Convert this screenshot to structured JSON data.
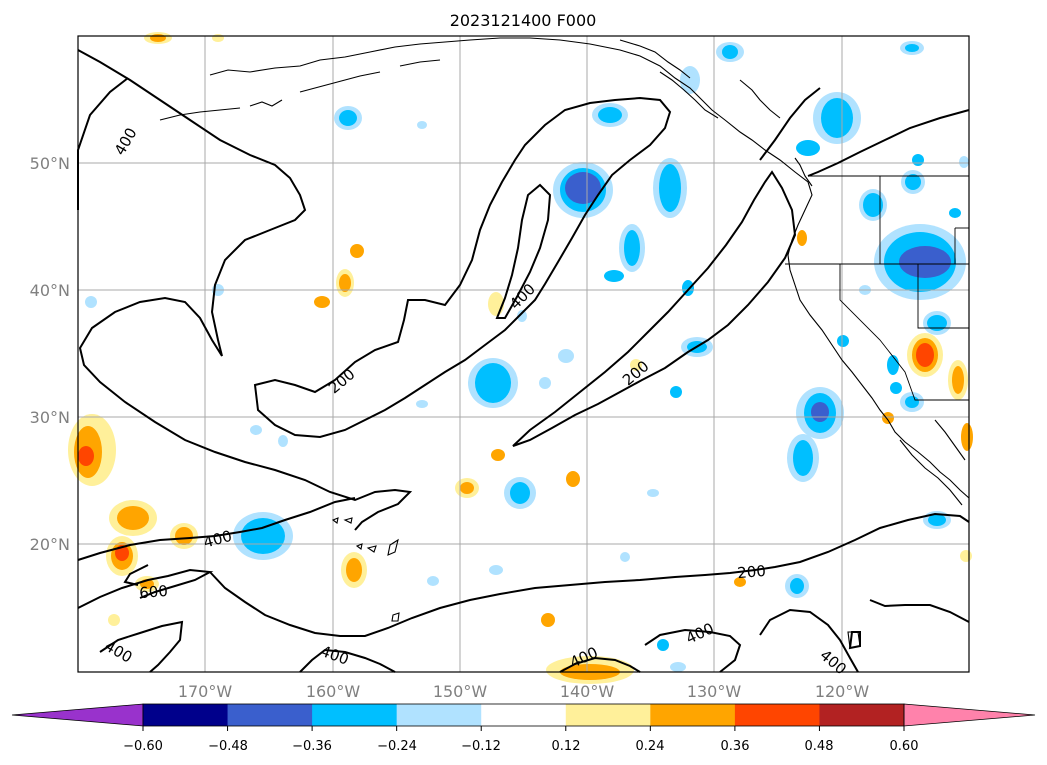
{
  "title": "2023121400 F000",
  "lat_labels": [
    "50°N",
    "40°N",
    "30°N",
    "20°N"
  ],
  "lon_labels": [
    "170°W",
    "160°W",
    "150°W",
    "140°W",
    "130°W",
    "120°W"
  ],
  "colorbar": {
    "colors": [
      "#9932cc",
      "#00008b",
      "#3a5fcd",
      "#00bfff",
      "#b0e2ff",
      "#ffffff",
      "#fff09a",
      "#ffa500",
      "#ff4500",
      "#b22222",
      "#ff82ab"
    ],
    "tick_labels": [
      "−0.60",
      "−0.48",
      "−0.36",
      "−0.24",
      "−0.12",
      "0.12",
      "0.24",
      "0.36",
      "0.48",
      "0.60"
    ]
  },
  "contour_labels": [
    "400",
    "200",
    "400",
    "200",
    "400",
    "600",
    "400",
    "400",
    "200",
    "400",
    "400",
    "400"
  ],
  "colors": {
    "land_outline": "#000000",
    "grid": "#a9a9a9",
    "contour": "#000000"
  }
}
